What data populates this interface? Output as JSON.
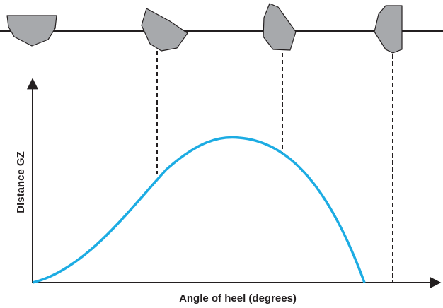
{
  "axes": {
    "y_label": "DIstance GZ",
    "x_label": "Angle of heel (degrees)"
  }
}
